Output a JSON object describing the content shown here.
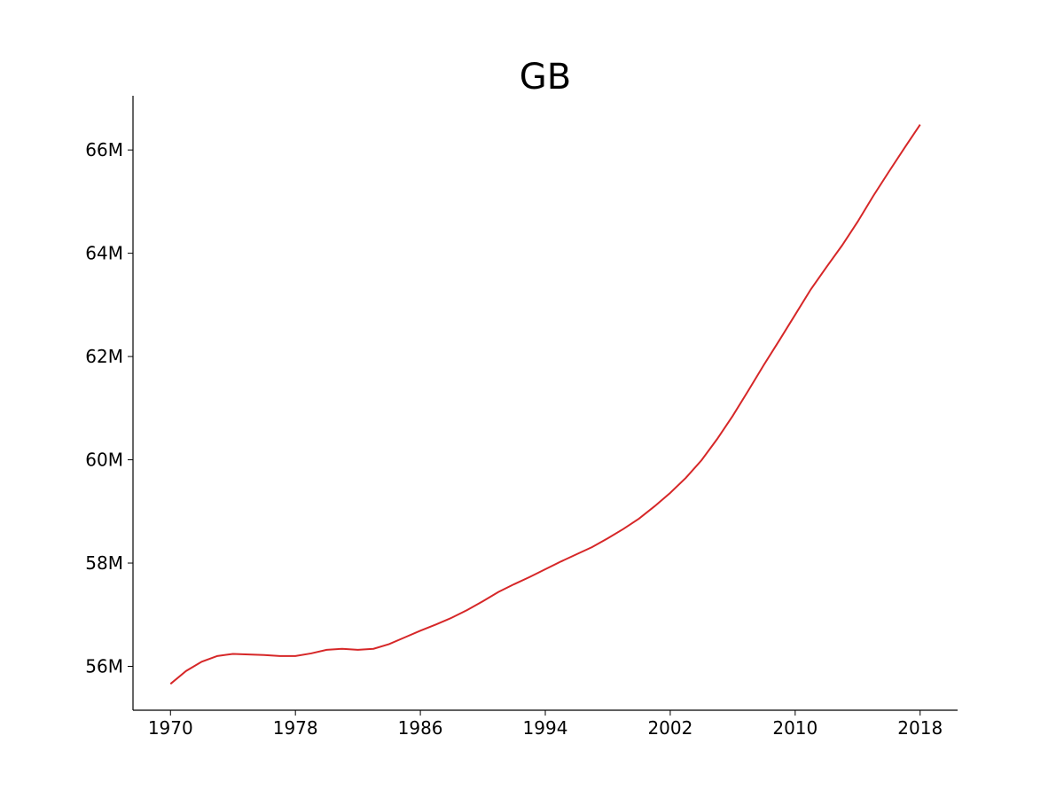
{
  "chart_data": {
    "type": "line",
    "title": "GB",
    "xlabel": "",
    "ylabel": "",
    "xlim": [
      1967.6,
      2020.4
    ],
    "ylim": [
      55150000,
      67050000
    ],
    "x_ticks": [
      1970,
      1978,
      1986,
      1994,
      2002,
      2010,
      2018
    ],
    "x_tick_labels": [
      "1970",
      "1978",
      "1986",
      "1994",
      "2002",
      "2010",
      "2018"
    ],
    "y_ticks": [
      56000000,
      58000000,
      60000000,
      62000000,
      64000000,
      66000000
    ],
    "y_tick_labels": [
      "56M",
      "58M",
      "60M",
      "62M",
      "64M",
      "66M"
    ],
    "grid": false,
    "series": [
      {
        "color": "#d62728",
        "x": [
          1970,
          1971,
          1972,
          1973,
          1974,
          1975,
          1976,
          1977,
          1978,
          1979,
          1980,
          1981,
          1982,
          1983,
          1984,
          1985,
          1986,
          1987,
          1988,
          1989,
          1990,
          1991,
          1992,
          1993,
          1994,
          1995,
          1996,
          1997,
          1998,
          1999,
          2000,
          2001,
          2002,
          2003,
          2004,
          2005,
          2006,
          2007,
          2008,
          2009,
          2010,
          2011,
          2012,
          2013,
          2014,
          2015,
          2016,
          2017,
          2018
        ],
        "values": [
          55660000,
          55910000,
          56090000,
          56200000,
          56240000,
          56230000,
          56220000,
          56200000,
          56200000,
          56250000,
          56320000,
          56340000,
          56320000,
          56340000,
          56430000,
          56560000,
          56690000,
          56810000,
          56940000,
          57090000,
          57260000,
          57440000,
          57590000,
          57730000,
          57880000,
          58030000,
          58170000,
          58310000,
          58480000,
          58660000,
          58860000,
          59100000,
          59360000,
          59650000,
          59990000,
          60400000,
          60850000,
          61340000,
          61840000,
          62320000,
          62810000,
          63300000,
          63730000,
          64150000,
          64610000,
          65110000,
          65580000,
          66040000,
          66490000
        ]
      }
    ]
  }
}
